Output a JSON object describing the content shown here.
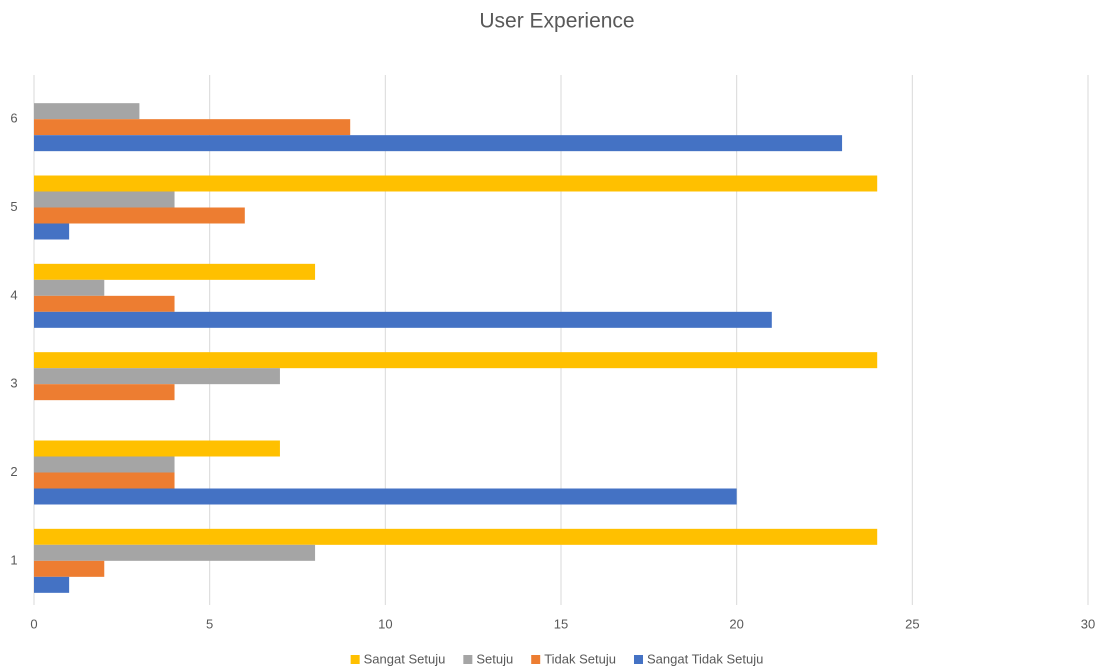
{
  "chart_data": {
    "type": "hbar",
    "title": "User Experience",
    "categories": [
      "1",
      "2",
      "3",
      "4",
      "5",
      "6"
    ],
    "series": [
      {
        "name": "Sangat Setuju",
        "color": "#ffc000",
        "values": [
          24,
          7,
          24,
          8,
          24,
          0
        ]
      },
      {
        "name": "Setuju",
        "color": "#a5a5a5",
        "values": [
          8,
          4,
          7,
          2,
          4,
          3
        ]
      },
      {
        "name": "Tidak Setuju",
        "color": "#ed7d31",
        "values": [
          2,
          4,
          4,
          4,
          6,
          9
        ]
      },
      {
        "name": "Sangat Tidak Setuju",
        "color": "#4472c4",
        "values": [
          1,
          20,
          0,
          21,
          1,
          23
        ]
      }
    ],
    "xlim": [
      0,
      30
    ],
    "xticks": [
      0,
      5,
      10,
      15,
      20,
      25,
      30
    ],
    "grid": true,
    "legend": "bottom"
  }
}
